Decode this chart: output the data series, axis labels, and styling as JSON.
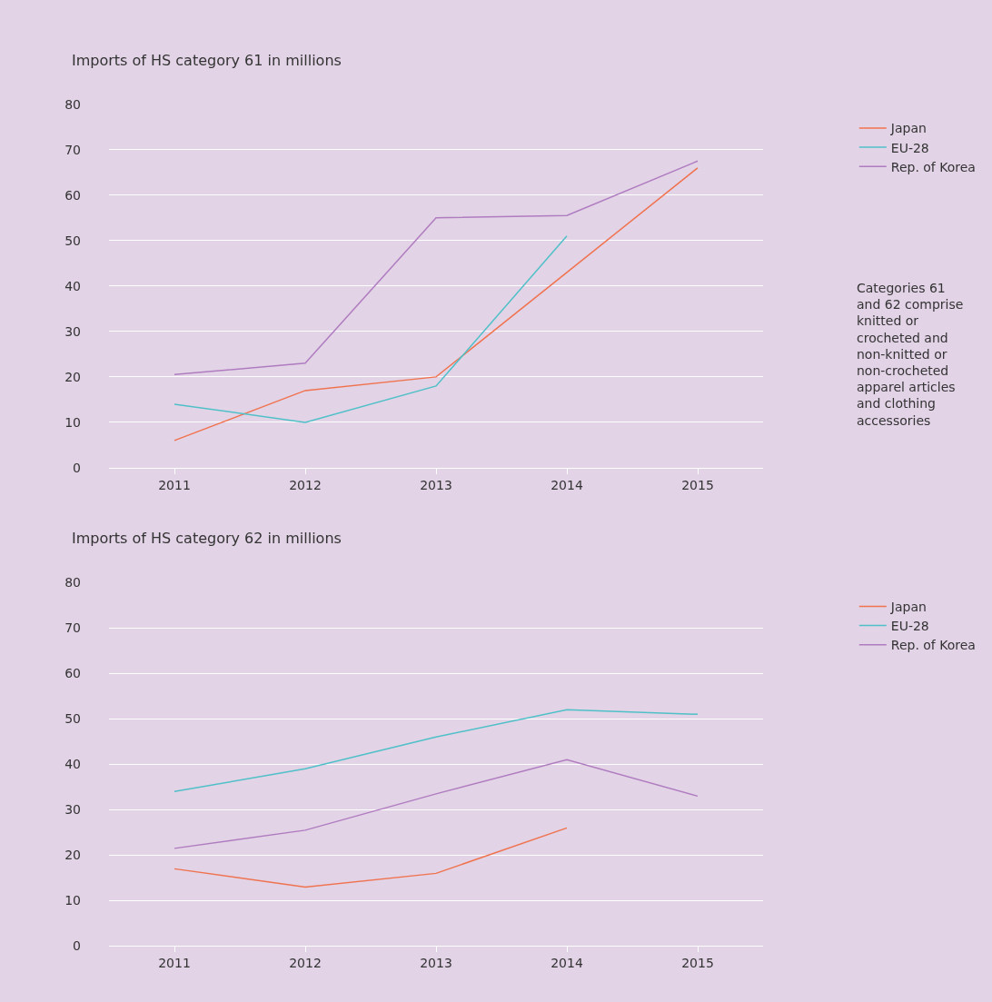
{
  "chart_data": [
    {
      "type": "line",
      "title": "Imports of HS category 61 in millions",
      "categories": [
        "2011",
        "2012",
        "2013",
        "2014",
        "2015"
      ],
      "series": [
        {
          "name": "Japan",
          "color": "#f0734f",
          "values": [
            6,
            17,
            20,
            43,
            66
          ]
        },
        {
          "name": "EU-28",
          "color": "#4fc0c8",
          "values": [
            14,
            10,
            18,
            51,
            null
          ]
        },
        {
          "name": "Rep. of Korea",
          "color": "#b07cc0",
          "values": [
            20.5,
            23,
            55,
            55.5,
            67.5
          ]
        }
      ],
      "ylim": [
        0,
        80
      ],
      "yticks": [
        0,
        10,
        20,
        30,
        40,
        50,
        60,
        70,
        80
      ],
      "grid": "y",
      "legend": "top right",
      "marker": "none",
      "line_style": "solid",
      "annotations": [
        "Categories 61 and 62 comprise knitted or crocheted and non-knitted or non-crocheted apparel articles and clothing accessories"
      ]
    },
    {
      "type": "line",
      "title": "Imports of HS category 62 in millions",
      "categories": [
        "2011",
        "2012",
        "2013",
        "2014",
        "2015"
      ],
      "series": [
        {
          "name": "Japan",
          "color": "#f0734f",
          "values": [
            17,
            13,
            16,
            26,
            null
          ]
        },
        {
          "name": "EU-28",
          "color": "#4fc0c8",
          "values": [
            34,
            39,
            46,
            52,
            51
          ]
        },
        {
          "name": "Rep. of Korea",
          "color": "#b07cc0",
          "values": [
            21.5,
            25.5,
            33.5,
            41,
            33
          ]
        }
      ],
      "ylim": [
        0,
        80
      ],
      "yticks": [
        0,
        10,
        20,
        30,
        40,
        50,
        60,
        70,
        80
      ],
      "grid": "y",
      "legend": "top right",
      "marker": "none",
      "line_style": "solid"
    }
  ]
}
